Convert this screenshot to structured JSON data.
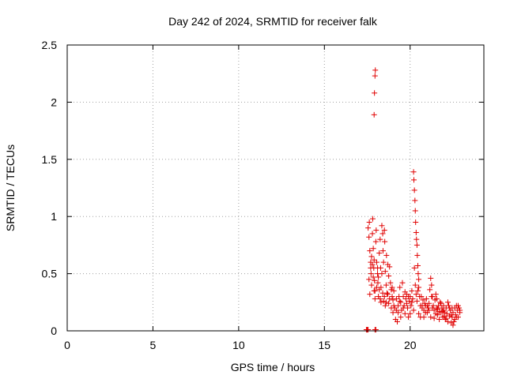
{
  "chart_data": {
    "type": "scatter",
    "title": "Day 242 of 2024, SRMTID for receiver falk",
    "xlabel": "GPS time / hours",
    "ylabel": "SRMTID / TECUs",
    "xlim": [
      0,
      24.3
    ],
    "ylim": [
      0,
      2.5
    ],
    "grid": true,
    "marker": "+",
    "xticks": [
      {
        "value": 0,
        "label": "0"
      },
      {
        "value": 5,
        "label": "5"
      },
      {
        "value": 10,
        "label": "10"
      },
      {
        "value": 15,
        "label": "15"
      },
      {
        "value": 20,
        "label": "20"
      }
    ],
    "yticks": [
      {
        "value": 0,
        "label": "0"
      },
      {
        "value": 0.5,
        "label": "0.5"
      },
      {
        "value": 1,
        "label": "1"
      },
      {
        "value": 1.5,
        "label": "1.5"
      },
      {
        "value": 2,
        "label": "2"
      },
      {
        "value": 2.5,
        "label": "2.5"
      }
    ],
    "series": [
      {
        "name": "SRMTID",
        "color": "#e00000",
        "points": [
          [
            17.45,
            0.01
          ],
          [
            17.5,
            0.01
          ],
          [
            17.55,
            0.01
          ],
          [
            17.95,
            0.01
          ],
          [
            18.0,
            0.01
          ],
          [
            17.55,
            0.9
          ],
          [
            17.6,
            0.82
          ],
          [
            17.62,
            0.95
          ],
          [
            17.65,
            0.7
          ],
          [
            17.7,
            0.6
          ],
          [
            17.72,
            0.5
          ],
          [
            17.75,
            0.4
          ],
          [
            17.8,
            0.85
          ],
          [
            17.82,
            0.98
          ],
          [
            17.85,
            0.72
          ],
          [
            17.88,
            0.55
          ],
          [
            17.9,
            0.62
          ],
          [
            17.92,
            0.44
          ],
          [
            17.95,
            0.35
          ],
          [
            18.0,
            0.78
          ],
          [
            18.02,
            0.88
          ],
          [
            18.05,
            0.6
          ],
          [
            18.1,
            0.5
          ],
          [
            18.12,
            0.42
          ],
          [
            18.15,
            0.3
          ],
          [
            18.2,
            0.68
          ],
          [
            18.25,
            0.8
          ],
          [
            18.28,
            0.55
          ],
          [
            18.3,
            0.38
          ],
          [
            18.35,
            0.92
          ],
          [
            18.4,
            0.85
          ],
          [
            18.42,
            0.7
          ],
          [
            18.45,
            0.6
          ],
          [
            18.5,
            0.88
          ],
          [
            18.52,
            0.78
          ],
          [
            18.55,
            0.52
          ],
          [
            18.6,
            0.4
          ],
          [
            18.62,
            0.66
          ],
          [
            18.65,
            0.33
          ],
          [
            18.7,
            0.58
          ],
          [
            18.75,
            0.48
          ],
          [
            18.8,
            0.56
          ],
          [
            18.85,
            0.42
          ],
          [
            18.9,
            0.36
          ],
          [
            18.95,
            0.3
          ],
          [
            19.0,
            0.27
          ],
          [
            19.05,
            0.22
          ],
          [
            17.6,
            0.45
          ],
          [
            17.65,
            0.32
          ],
          [
            17.7,
            0.55
          ],
          [
            17.75,
            0.65
          ],
          [
            17.8,
            0.58
          ],
          [
            17.85,
            0.47
          ],
          [
            17.9,
            0.35
          ],
          [
            17.95,
            0.28
          ],
          [
            18.05,
            0.38
          ],
          [
            18.1,
            0.55
          ],
          [
            18.15,
            0.47
          ],
          [
            18.2,
            0.36
          ],
          [
            18.25,
            0.28
          ],
          [
            18.3,
            0.25
          ],
          [
            18.35,
            0.5
          ],
          [
            18.4,
            0.33
          ],
          [
            18.45,
            0.26
          ],
          [
            18.5,
            0.3
          ],
          [
            18.55,
            0.22
          ],
          [
            18.6,
            0.25
          ],
          [
            18.7,
            0.32
          ],
          [
            18.75,
            0.24
          ],
          [
            18.8,
            0.28
          ],
          [
            18.9,
            0.2
          ],
          [
            18.95,
            0.38
          ],
          [
            19.0,
            0.16
          ],
          [
            17.9,
            1.89
          ],
          [
            17.92,
            2.08
          ],
          [
            17.95,
            2.23
          ],
          [
            17.97,
            2.28
          ],
          [
            19.05,
            0.35
          ],
          [
            19.1,
            0.2
          ],
          [
            19.15,
            0.1
          ],
          [
            19.2,
            0.28
          ],
          [
            19.25,
            0.08
          ],
          [
            19.3,
            0.22
          ],
          [
            19.35,
            0.3
          ],
          [
            19.4,
            0.38
          ],
          [
            19.45,
            0.25
          ],
          [
            19.5,
            0.18
          ],
          [
            19.55,
            0.42
          ],
          [
            19.6,
            0.3
          ],
          [
            19.65,
            0.22
          ],
          [
            19.7,
            0.15
          ],
          [
            19.75,
            0.28
          ],
          [
            19.8,
            0.32
          ],
          [
            19.85,
            0.2
          ],
          [
            19.9,
            0.12
          ],
          [
            19.95,
            0.26
          ],
          [
            20.0,
            0.3
          ],
          [
            20.05,
            0.22
          ],
          [
            20.1,
            0.35
          ],
          [
            20.15,
            0.28
          ],
          [
            20.2,
            0.18
          ],
          [
            19.3,
            0.16
          ],
          [
            19.45,
            0.12
          ],
          [
            19.6,
            0.2
          ],
          [
            19.8,
            0.24
          ],
          [
            20.0,
            0.15
          ],
          [
            19.2,
            0.18
          ],
          [
            19.4,
            0.26
          ],
          [
            19.7,
            0.34
          ],
          [
            19.9,
            0.3
          ],
          [
            20.1,
            0.25
          ],
          [
            20.2,
            1.39
          ],
          [
            20.22,
            1.32
          ],
          [
            20.25,
            1.23
          ],
          [
            20.28,
            1.14
          ],
          [
            20.3,
            1.05
          ],
          [
            20.32,
            0.95
          ],
          [
            20.35,
            0.86
          ],
          [
            20.37,
            0.8
          ],
          [
            20.4,
            0.75
          ],
          [
            20.42,
            0.66
          ],
          [
            20.45,
            0.57
          ],
          [
            20.47,
            0.5
          ],
          [
            20.5,
            0.45
          ],
          [
            20.25,
            0.55
          ],
          [
            20.3,
            0.4
          ],
          [
            20.35,
            0.32
          ],
          [
            20.4,
            0.26
          ],
          [
            20.45,
            0.35
          ],
          [
            20.5,
            0.38
          ],
          [
            20.55,
            0.3
          ],
          [
            20.6,
            0.22
          ],
          [
            20.65,
            0.3
          ],
          [
            20.7,
            0.2
          ],
          [
            20.75,
            0.27
          ],
          [
            20.8,
            0.18
          ],
          [
            20.85,
            0.24
          ],
          [
            20.9,
            0.16
          ],
          [
            20.95,
            0.28
          ],
          [
            21.0,
            0.22
          ],
          [
            21.05,
            0.2
          ],
          [
            20.5,
            0.15
          ],
          [
            20.6,
            0.12
          ],
          [
            20.7,
            0.22
          ],
          [
            20.8,
            0.12
          ],
          [
            20.9,
            0.22
          ],
          [
            21.0,
            0.16
          ],
          [
            21.1,
            0.24
          ],
          [
            21.15,
            0.36
          ],
          [
            21.2,
            0.46
          ],
          [
            21.25,
            0.4
          ],
          [
            21.3,
            0.3
          ],
          [
            21.35,
            0.22
          ],
          [
            21.4,
            0.18
          ],
          [
            21.45,
            0.27
          ],
          [
            21.5,
            0.32
          ],
          [
            21.55,
            0.2
          ],
          [
            21.6,
            0.14
          ],
          [
            21.65,
            0.22
          ],
          [
            21.7,
            0.17
          ],
          [
            21.75,
            0.25
          ],
          [
            21.8,
            0.16
          ],
          [
            21.85,
            0.2
          ],
          [
            21.9,
            0.12
          ],
          [
            21.95,
            0.22
          ],
          [
            22.0,
            0.16
          ],
          [
            22.05,
            0.1
          ],
          [
            22.1,
            0.2
          ],
          [
            22.15,
            0.15
          ],
          [
            22.2,
            0.25
          ],
          [
            22.25,
            0.22
          ],
          [
            22.3,
            0.13
          ],
          [
            22.35,
            0.18
          ],
          [
            22.4,
            0.07
          ],
          [
            22.45,
            0.12
          ],
          [
            22.5,
            0.16
          ],
          [
            22.55,
            0.08
          ],
          [
            22.6,
            0.2
          ],
          [
            22.65,
            0.14
          ],
          [
            22.7,
            0.22
          ],
          [
            22.75,
            0.18
          ],
          [
            22.8,
            0.12
          ],
          [
            22.85,
            0.2
          ],
          [
            22.9,
            0.16
          ],
          [
            21.1,
            0.18
          ],
          [
            21.2,
            0.12
          ],
          [
            21.3,
            0.2
          ],
          [
            21.4,
            0.11
          ],
          [
            21.5,
            0.15
          ],
          [
            21.6,
            0.19
          ],
          [
            21.7,
            0.1
          ],
          [
            21.8,
            0.24
          ],
          [
            21.9,
            0.17
          ],
          [
            22.0,
            0.13
          ],
          [
            22.1,
            0.11
          ],
          [
            22.2,
            0.08
          ],
          [
            22.3,
            0.2
          ],
          [
            22.4,
            0.14
          ],
          [
            22.5,
            0.05
          ],
          [
            22.6,
            0.1
          ],
          [
            22.7,
            0.12
          ],
          [
            22.8,
            0.22
          ],
          [
            22.9,
            0.18
          ],
          [
            21.25,
            0.3
          ],
          [
            21.55,
            0.28
          ],
          [
            21.95,
            0.18
          ],
          [
            22.45,
            0.2
          ]
        ]
      }
    ]
  }
}
